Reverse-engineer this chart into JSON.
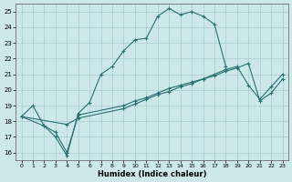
{
  "xlabel": "Humidex (Indice chaleur)",
  "bg_color": "#cce8e8",
  "grid_color": "#aacece",
  "line_color": "#2a7070",
  "xlim": [
    -0.5,
    23.5
  ],
  "ylim": [
    15.5,
    25.5
  ],
  "xticks": [
    0,
    1,
    2,
    3,
    4,
    5,
    6,
    7,
    8,
    9,
    10,
    11,
    12,
    13,
    14,
    15,
    16,
    17,
    18,
    19,
    20,
    21,
    22,
    23
  ],
  "yticks": [
    16,
    17,
    18,
    19,
    20,
    21,
    22,
    23,
    24,
    25
  ],
  "line1_x": [
    0,
    1,
    2,
    3,
    4,
    5,
    6,
    7,
    8,
    9,
    10,
    11,
    12,
    13,
    14,
    15,
    16,
    17,
    18
  ],
  "line1_y": [
    18.3,
    19.0,
    17.7,
    17.0,
    15.8,
    18.5,
    19.2,
    21.0,
    21.5,
    22.5,
    23.2,
    23.3,
    24.7,
    25.2,
    24.8,
    25.0,
    24.7,
    24.2,
    21.5
  ],
  "line2_x": [
    0,
    2,
    3,
    4,
    5,
    9,
    10,
    11,
    12,
    13,
    14,
    15,
    16,
    17,
    18,
    19,
    20,
    21,
    22,
    23
  ],
  "line2_y": [
    18.3,
    17.7,
    17.3,
    16.0,
    18.4,
    19.0,
    19.3,
    19.5,
    19.8,
    20.1,
    20.3,
    20.5,
    20.7,
    21.0,
    21.3,
    21.5,
    20.3,
    19.4,
    20.2,
    21.0
  ],
  "line3_x": [
    0,
    4,
    5,
    9,
    10,
    11,
    12,
    13,
    14,
    15,
    16,
    17,
    18,
    19,
    20,
    21,
    22,
    23
  ],
  "line3_y": [
    18.3,
    17.8,
    18.2,
    18.8,
    19.1,
    19.4,
    19.7,
    19.9,
    20.2,
    20.4,
    20.7,
    20.9,
    21.2,
    21.4,
    21.7,
    19.3,
    19.8,
    20.7
  ]
}
